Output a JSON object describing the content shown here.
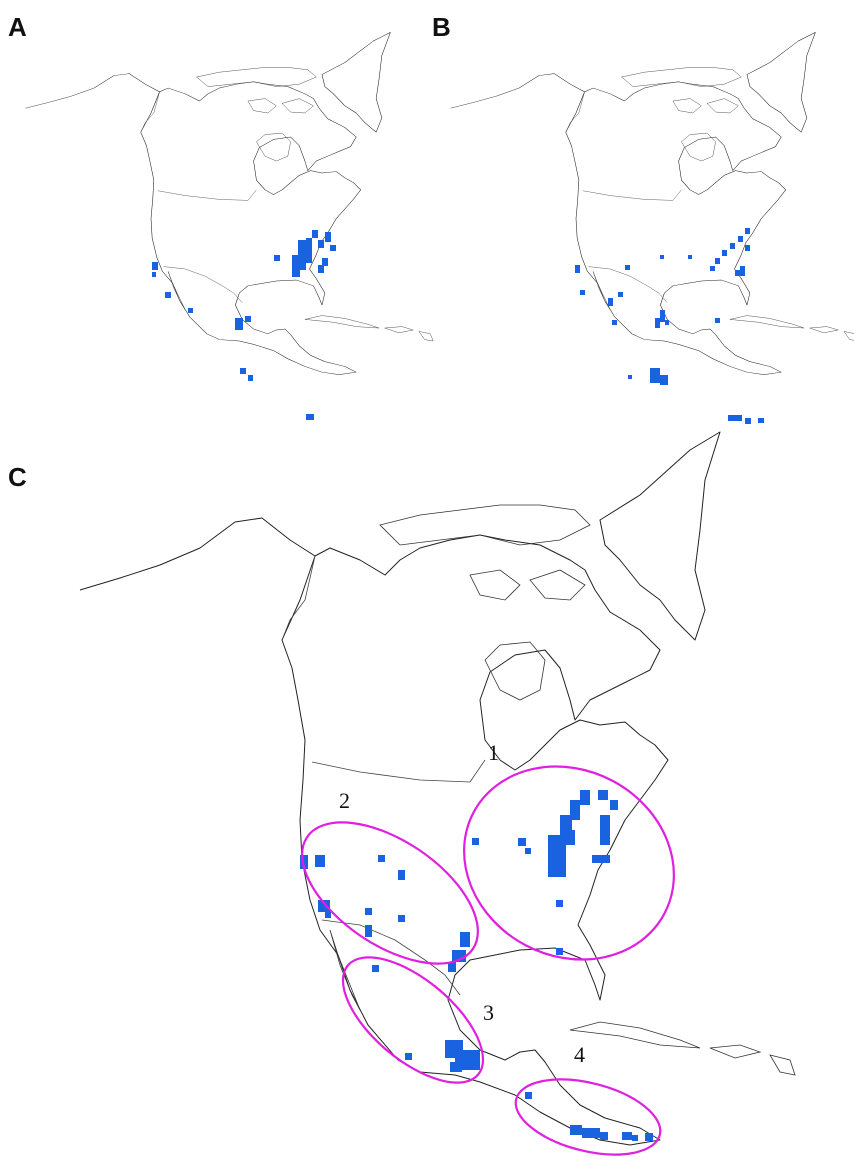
{
  "panels": [
    {
      "id": "A",
      "label": "A"
    },
    {
      "id": "B",
      "label": "B"
    },
    {
      "id": "C",
      "label": "C"
    }
  ],
  "regions": [
    {
      "label": "1"
    },
    {
      "label": "2"
    },
    {
      "label": "3"
    },
    {
      "label": "4"
    }
  ],
  "colors": {
    "occurrence": "#1a63e0",
    "region_outline": "#e020e0",
    "coastline": "#222222"
  }
}
